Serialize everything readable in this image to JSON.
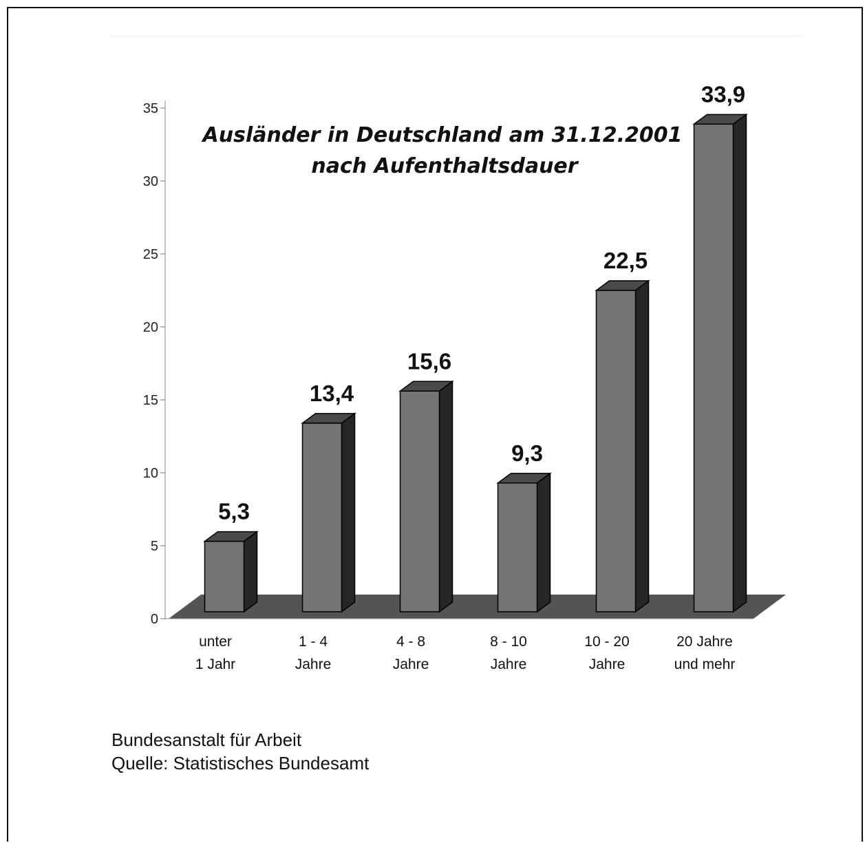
{
  "chart_data": {
    "type": "bar",
    "title": "Ausländer in Deutschland am 31.12.2001",
    "subtitle": "nach Aufenthaltsdauer",
    "categories": [
      [
        "unter",
        "1 Jahr"
      ],
      [
        "1 - 4",
        "Jahre"
      ],
      [
        "4 - 8",
        "Jahre"
      ],
      [
        "8 - 10",
        "Jahre"
      ],
      [
        "10 - 20",
        "Jahre"
      ],
      [
        "20 Jahre",
        "und mehr"
      ]
    ],
    "values": [
      5.3,
      13.4,
      15.6,
      9.3,
      22.5,
      33.9
    ],
    "value_labels": [
      "5,3",
      "13,4",
      "15,6",
      "9,3",
      "22,5",
      "33,9"
    ],
    "xlabel": "",
    "ylabel": "",
    "ylim": [
      0,
      35
    ],
    "yticks": [
      0,
      5,
      10,
      15,
      20,
      25,
      30,
      35
    ],
    "grid": false,
    "style": "3d",
    "colors": {
      "bar_front": "#747474",
      "bar_top": "#4a4a4a",
      "bar_side": "#262626",
      "floor": "#545454"
    }
  },
  "footer": {
    "line1": "Bundesanstalt für Arbeit",
    "line2": "Quelle: Statistisches Bundesamt"
  }
}
